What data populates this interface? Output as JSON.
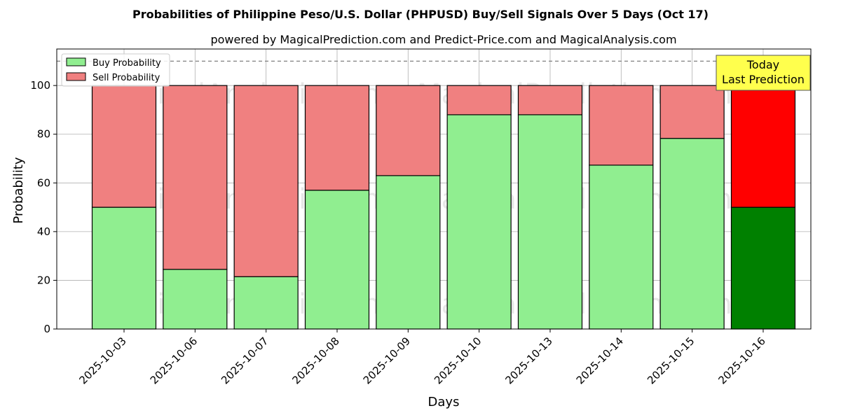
{
  "chart_data": {
    "type": "bar",
    "stacked": true,
    "title": "Probabilities of Philippine Peso/U.S. Dollar (PHPUSD) Buy/Sell Signals Over 5 Days (Oct 17)",
    "subtitle": "powered by MagicalPrediction.com and Predict-Price.com and MagicalAnalysis.com",
    "xlabel": "Days",
    "ylabel": "Probability",
    "ylim": [
      0,
      115
    ],
    "yticks": [
      0,
      20,
      40,
      60,
      80,
      100
    ],
    "reference_line": 110,
    "grid": true,
    "legend_position": "top-left",
    "categories": [
      "2025-10-03",
      "2025-10-06",
      "2025-10-07",
      "2025-10-08",
      "2025-10-09",
      "2025-10-10",
      "2025-10-13",
      "2025-10-14",
      "2025-10-15",
      "2025-10-16"
    ],
    "series": [
      {
        "name": "Buy Probability",
        "color": "#90ee90",
        "highlight_color": "#008000",
        "values": [
          50,
          24.5,
          21.5,
          57,
          63,
          88,
          88,
          67.3,
          78.3,
          50
        ]
      },
      {
        "name": "Sell Probability",
        "color": "#f08080",
        "highlight_color": "#ff0000",
        "values": [
          50,
          75.5,
          78.5,
          43,
          37,
          12,
          12,
          32.7,
          21.7,
          50
        ]
      }
    ],
    "highlight_index": 9,
    "annotation": {
      "lines": [
        "Today",
        "Last Prediction"
      ],
      "color": "#ffff4d"
    },
    "watermarks": [
      "MagicalAnalysis.com",
      "MagicalPrediction.com"
    ]
  }
}
